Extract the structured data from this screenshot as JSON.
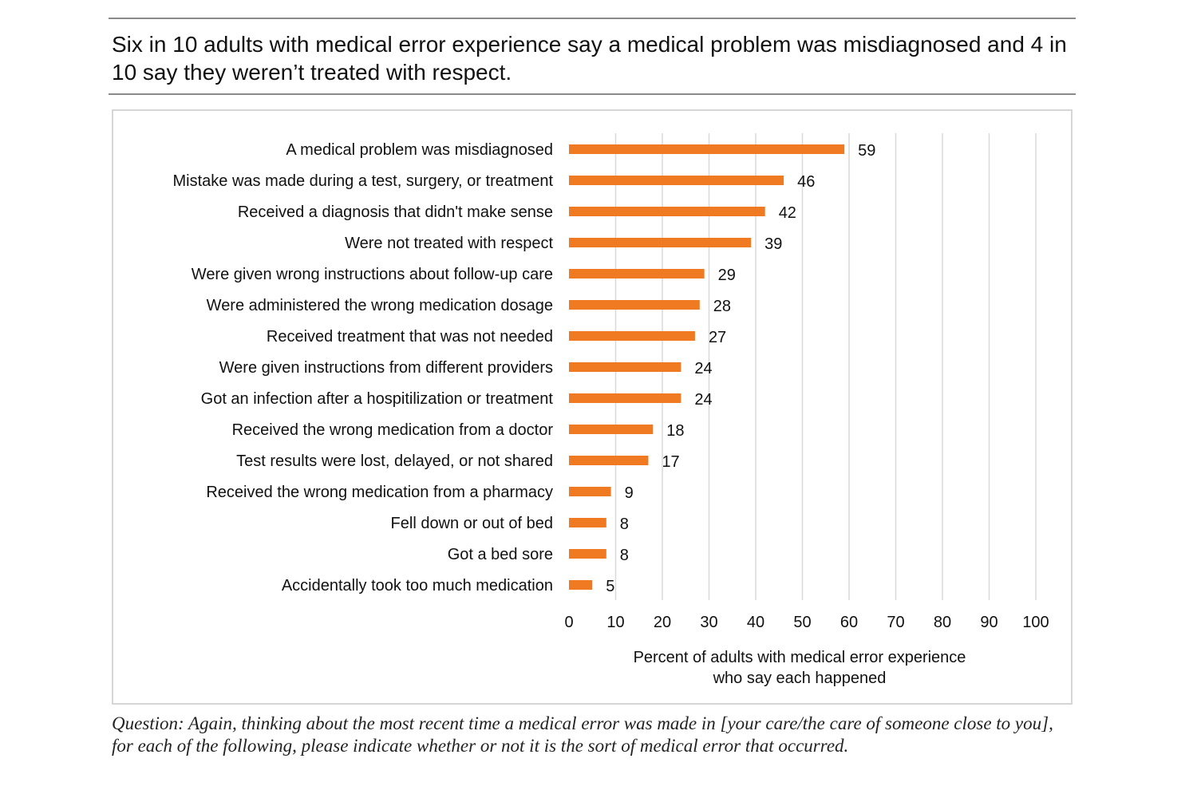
{
  "title": "Six in 10 adults with medical error experience say a medical problem was misdiagnosed and 4 in 10 say they weren’t treated with respect.",
  "footer": "Question: Again, thinking about the most recent time a medical error was made in [your care/the care of someone close to you], for each of the following, please indicate whether or not it is the sort of medical error that occurred.",
  "chart_data": {
    "type": "bar",
    "orientation": "horizontal",
    "categories": [
      "A medical problem was misdiagnosed",
      "Mistake was made during a test, surgery, or treatment",
      "Received a diagnosis that didn't make sense",
      "Were not treated with respect",
      "Were given wrong instructions about follow-up care",
      "Were administered the wrong medication dosage",
      "Received treatment that was not needed",
      "Were given instructions from different providers",
      "Got an infection after a hospitilization or treatment",
      "Received the wrong medication from a doctor",
      "Test results were lost, delayed, or not shared",
      "Received the wrong medication from a pharmacy",
      "Fell down or out of bed",
      "Got a bed sore",
      "Accidentally took too much medication"
    ],
    "values": [
      59,
      46,
      42,
      39,
      29,
      28,
      27,
      24,
      24,
      18,
      17,
      9,
      8,
      8,
      5
    ],
    "xlabel": "Percent of adults with medical error experience who say each happened",
    "xlabel_lines": [
      "Percent of adults with medical error experience",
      "who say each happened"
    ],
    "xlim": [
      0,
      100
    ],
    "xticks": [
      "0",
      "10",
      "20",
      "30",
      "40",
      "50",
      "60",
      "70",
      "80",
      "90",
      "100"
    ],
    "grid": "vertical",
    "data_labels": true,
    "bar_color": "#f07a22",
    "grid_color": "#d9d9d9"
  }
}
